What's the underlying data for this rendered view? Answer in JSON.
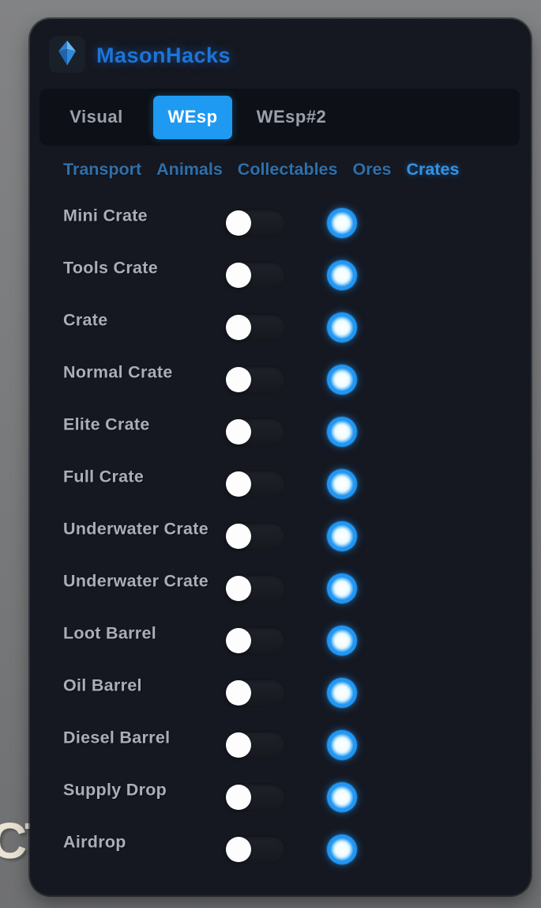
{
  "app": {
    "title": "MasonHacks",
    "logo_icon": "gem-icon"
  },
  "background": {
    "overlay_text": "CT"
  },
  "tabs": [
    {
      "label": "Visual",
      "active": false
    },
    {
      "label": "WEsp",
      "active": true
    },
    {
      "label": "WEsp#2",
      "active": false
    }
  ],
  "subtabs": [
    {
      "label": "Transport",
      "active": false
    },
    {
      "label": "Animals",
      "active": false
    },
    {
      "label": "Collectables",
      "active": false
    },
    {
      "label": "Ores",
      "active": false
    },
    {
      "label": "Crates",
      "active": true
    }
  ],
  "rows": [
    {
      "label": "Mini Crate",
      "enabled": false,
      "color": "#2196f3"
    },
    {
      "label": "Tools Crate",
      "enabled": false,
      "color": "#2196f3"
    },
    {
      "label": "Crate",
      "enabled": false,
      "color": "#2196f3"
    },
    {
      "label": "Normal Crate",
      "enabled": false,
      "color": "#2196f3"
    },
    {
      "label": "Elite Crate",
      "enabled": false,
      "color": "#2196f3"
    },
    {
      "label": "Full Crate",
      "enabled": false,
      "color": "#2196f3"
    },
    {
      "label": "Underwater Crate",
      "enabled": false,
      "color": "#2196f3"
    },
    {
      "label": "Underwater Crate",
      "enabled": false,
      "color": "#2196f3"
    },
    {
      "label": "Loot Barrel",
      "enabled": false,
      "color": "#2196f3"
    },
    {
      "label": "Oil Barrel",
      "enabled": false,
      "color": "#2196f3"
    },
    {
      "label": "Diesel Barrel",
      "enabled": false,
      "color": "#2196f3"
    },
    {
      "label": "Supply Drop",
      "enabled": false,
      "color": "#2196f3"
    },
    {
      "label": "Airdrop",
      "enabled": false,
      "color": "#2196f3"
    }
  ],
  "colors": {
    "accent": "#2196f3",
    "panel_bg": "#151821",
    "tabbar_bg": "#0d1016",
    "tab_active_bg": "#1e9af3",
    "subtab_color": "#306fa9",
    "subtab_active_color": "#3193e8",
    "label_color": "#a9aeb9",
    "title_color": "#1d74d8",
    "background_gray": "#7c7d7f"
  }
}
